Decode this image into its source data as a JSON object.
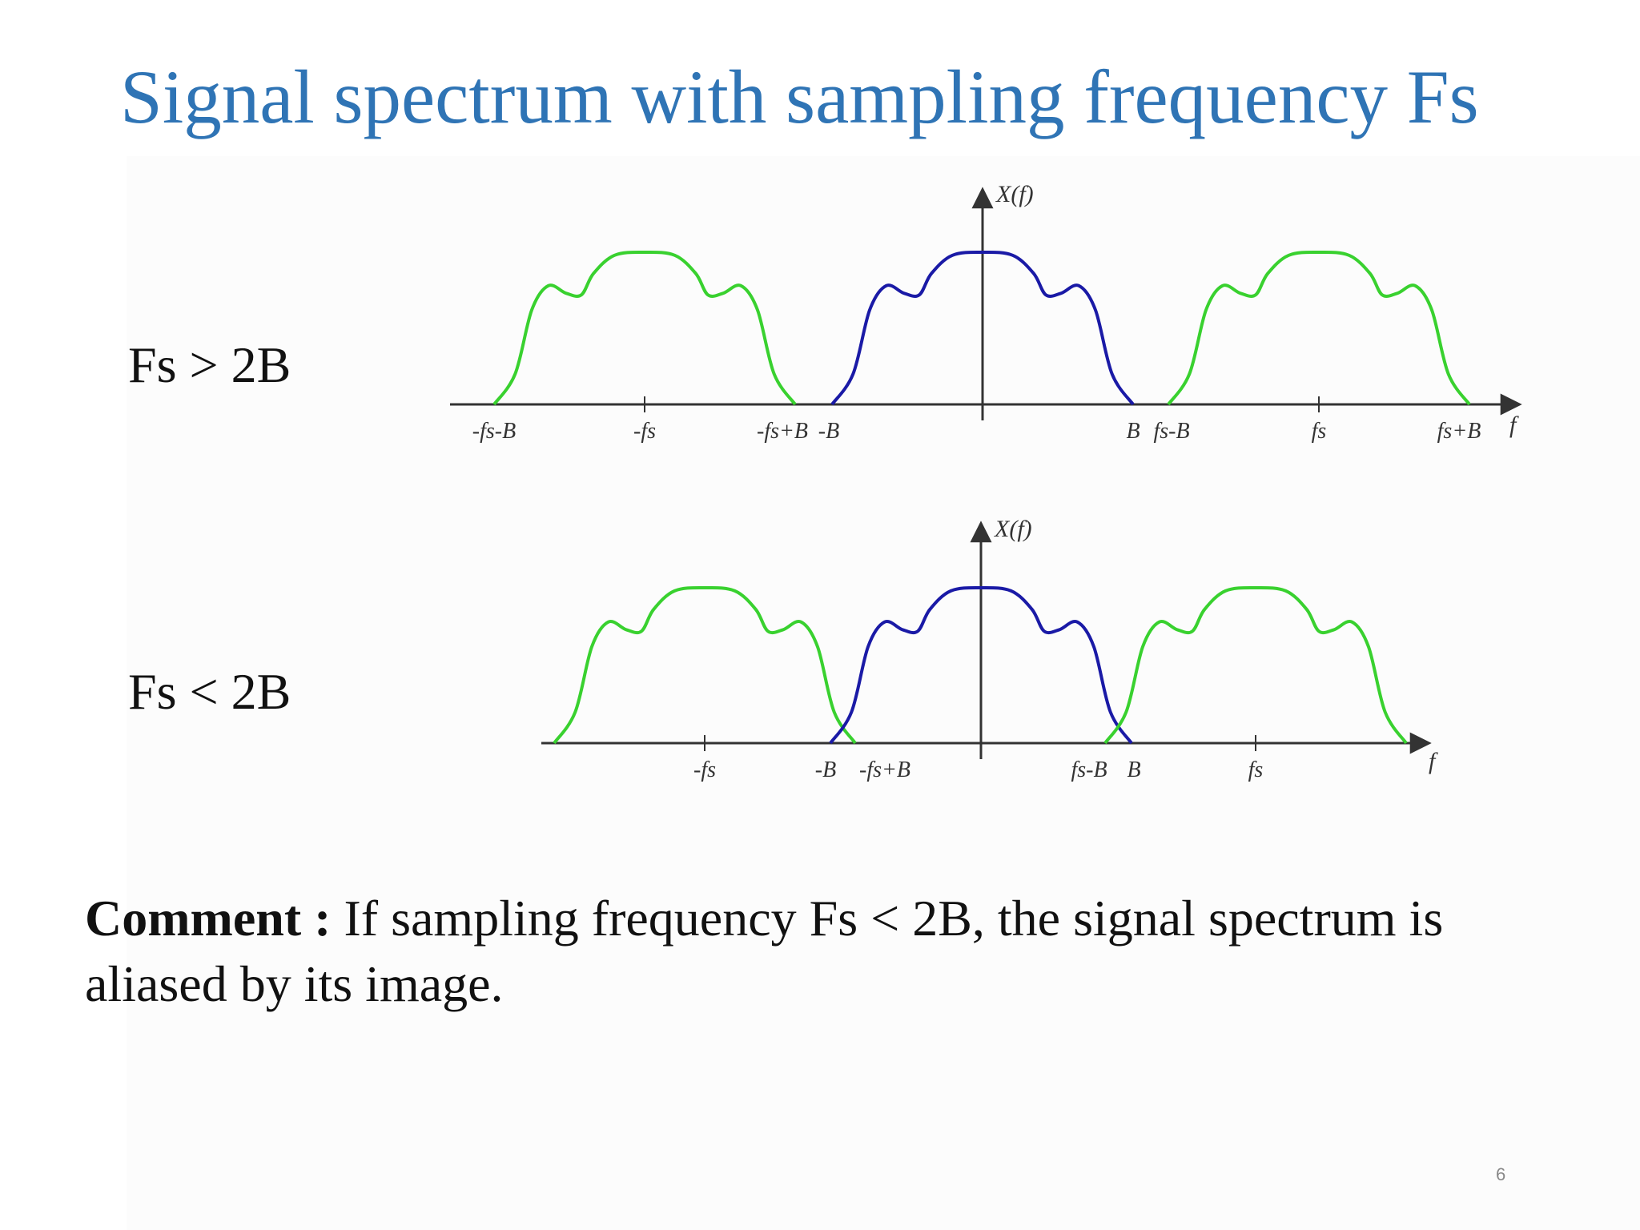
{
  "slide": {
    "title": "Signal spectrum with sampling frequency Fs",
    "page_number": "6"
  },
  "conditions": {
    "top": "Fs > 2B",
    "bottom": "Fs < 2B"
  },
  "comment": {
    "label": "Comment :",
    "text": " If sampling frequency Fs < 2B, the signal spectrum is aliased by its image."
  },
  "diagrams": {
    "top": {
      "y_label": "X(f)",
      "x_label": "f",
      "ticks": [
        "-fs-B",
        "-fs",
        "-fs+B",
        "-B",
        "B",
        "fs-B",
        "fs",
        "fs+B"
      ]
    },
    "bottom": {
      "y_label": "X(f)",
      "x_label": "f",
      "ticks": [
        "-fs",
        "-B",
        "-fs+B",
        "fs-B",
        "B",
        "fs"
      ]
    }
  },
  "colors": {
    "title": "#2f74b5",
    "baseband": "#1a1aa6",
    "image": "#39d12f",
    "axis": "#333333"
  }
}
